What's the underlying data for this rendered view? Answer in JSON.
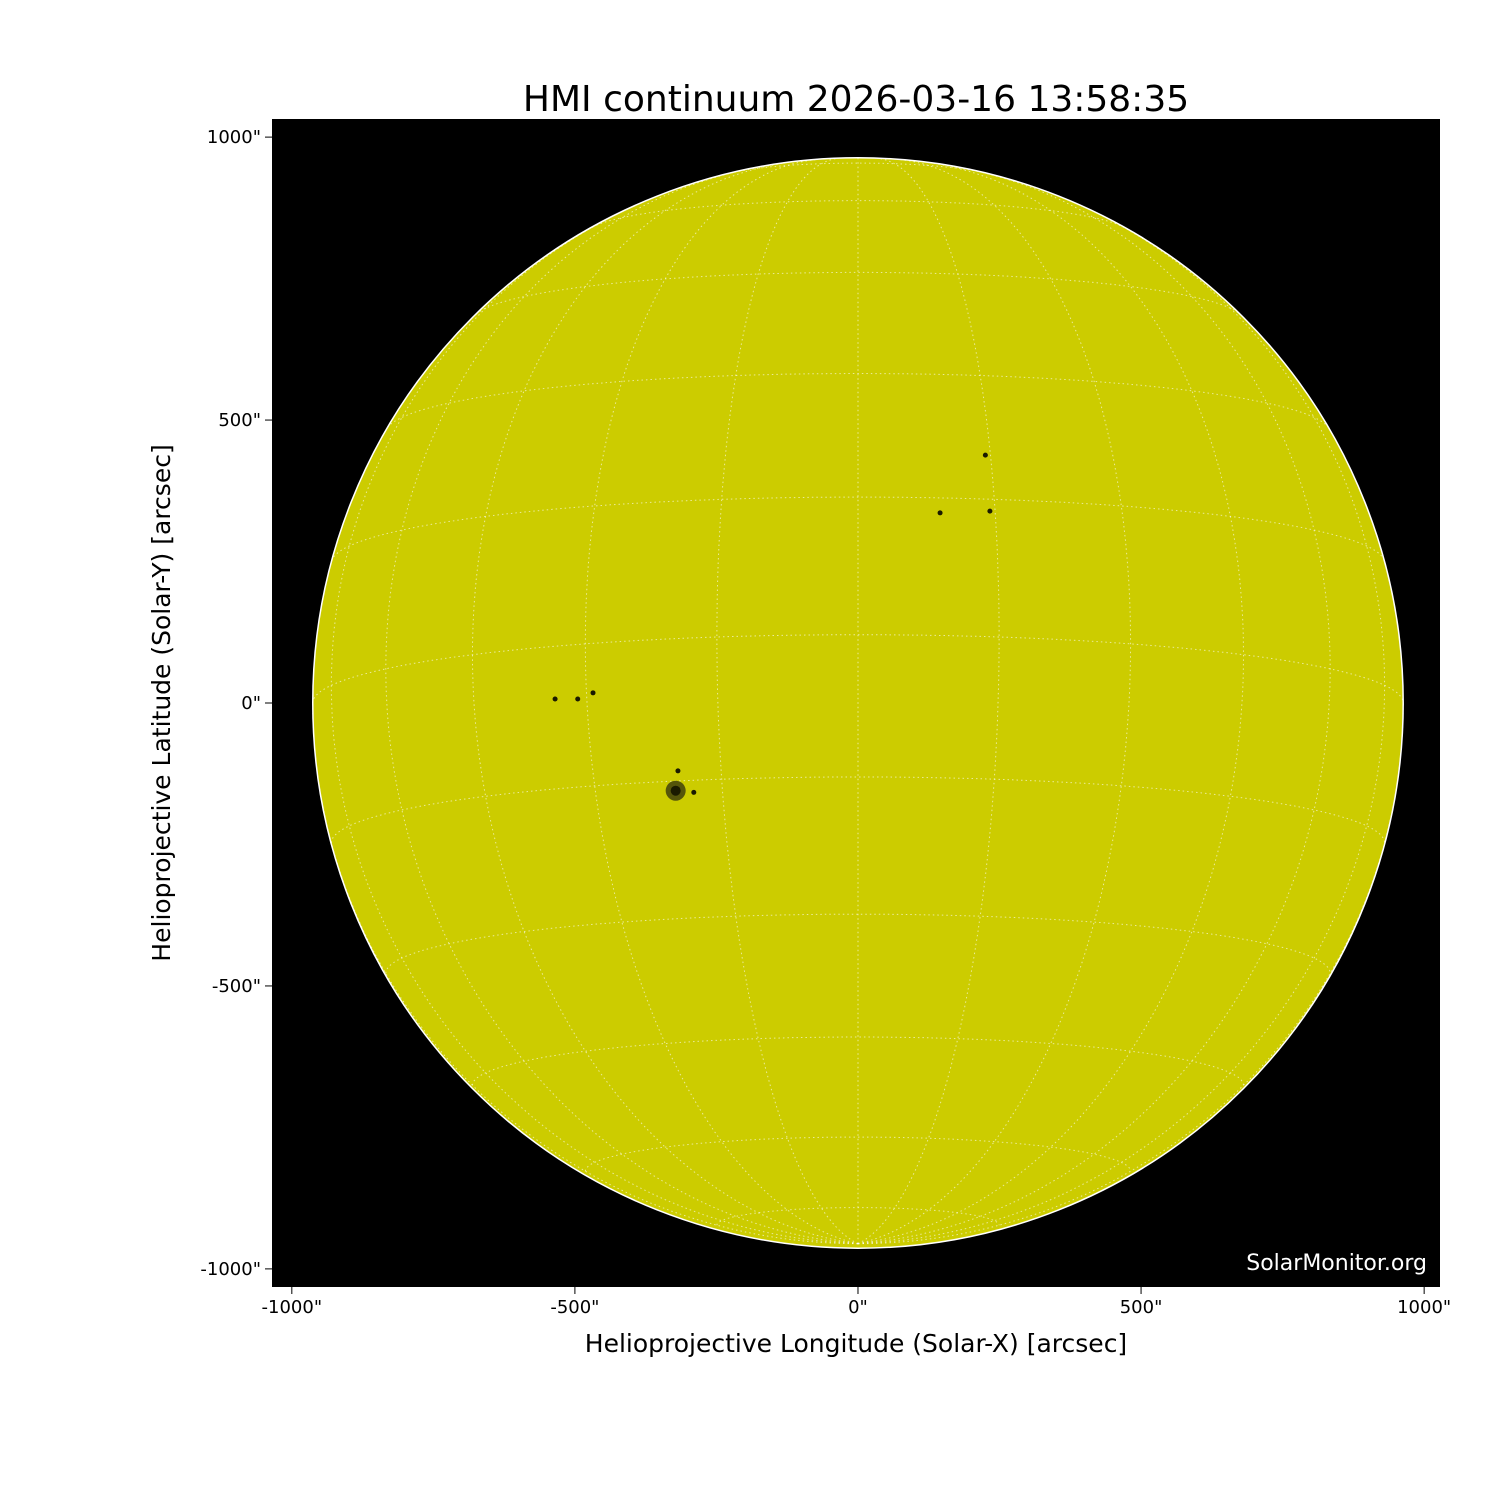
{
  "chart_data": {
    "type": "image",
    "title": "HMI continuum 2026-03-16 13:58:35",
    "xlabel": "Helioprojective Longitude (Solar-X) [arcsec]",
    "ylabel": "Helioprojective Latitude (Solar-Y) [arcsec]",
    "xlim": [
      -1035,
      1028
    ],
    "ylim": [
      -1032,
      1032
    ],
    "xticks": [
      -1000,
      -500,
      0,
      500,
      1000
    ],
    "yticks": [
      -1000,
      -500,
      0,
      500,
      1000
    ],
    "xtick_labels": [
      "-1000\"",
      "-500\"",
      "0\"",
      "500\"",
      "1000\""
    ],
    "ytick_labels": [
      "-1000\"",
      "-500\"",
      "0\"",
      "500\"",
      "1000\""
    ],
    "solar_radius_arcsec": 963,
    "grid": "heliographic, 15° spacing, dotted white",
    "colors": {
      "disk": "#cccc00",
      "background": "#000000",
      "grid": "#ffffff",
      "sunspot": "#1a1a00"
    },
    "sunspots": [
      {
        "x": -322,
        "y": -155,
        "size": "large"
      },
      {
        "x": -535,
        "y": 7,
        "size": "small"
      },
      {
        "x": -495,
        "y": 7,
        "size": "small"
      },
      {
        "x": -468,
        "y": 18,
        "size": "small"
      },
      {
        "x": -318,
        "y": -120,
        "size": "small"
      },
      {
        "x": -290,
        "y": -158,
        "size": "small"
      },
      {
        "x": 145,
        "y": 336,
        "size": "small"
      },
      {
        "x": 233,
        "y": 339,
        "size": "small"
      },
      {
        "x": 225,
        "y": 438,
        "size": "small"
      }
    ],
    "watermark": "SolarMonitor.org"
  }
}
